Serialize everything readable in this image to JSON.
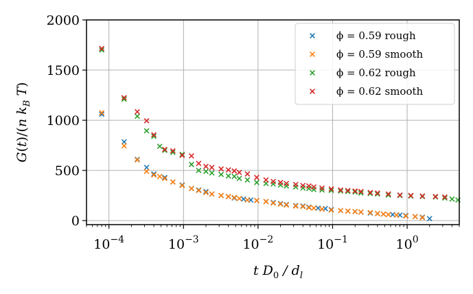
{
  "chart_data": {
    "type": "scatter",
    "marker": "x",
    "xscale": "log",
    "xlabel": "t D0 / dl",
    "ylabel": "G(t)/(n kB T)",
    "xlim": [
      5e-05,
      5
    ],
    "ylim": [
      -40,
      2000
    ],
    "grid": true,
    "legend_position": "top-right",
    "yticks": [
      0,
      500,
      1000,
      1500,
      2000
    ],
    "xticks": [
      {
        "value": 0.0001,
        "base": "10",
        "exp": "−4"
      },
      {
        "value": 0.001,
        "base": "10",
        "exp": "−3"
      },
      {
        "value": 0.01,
        "base": "10",
        "exp": "−2"
      },
      {
        "value": 0.1,
        "base": "10",
        "exp": "−1"
      },
      {
        "value": 1,
        "base": "10",
        "exp": "0"
      }
    ],
    "series": [
      {
        "name": "ϕ = 0.59 rough",
        "color": "#1f77b4",
        "x": [
          8e-05,
          0.00016,
          0.00024,
          0.00032,
          0.0004,
          0.00056,
          0.00072,
          0.00096,
          0.00128,
          0.0016,
          0.002,
          0.0024,
          0.0032,
          0.004,
          0.0048,
          0.0064,
          0.008,
          0.0096,
          0.0128,
          0.016,
          0.02,
          0.024,
          0.032,
          0.04,
          0.048,
          0.064,
          0.08,
          0.096,
          0.128,
          0.16,
          0.2,
          0.24,
          0.32,
          0.4,
          0.48,
          0.64,
          0.8,
          0.96,
          1.28,
          1.6,
          2.0
        ],
        "y": [
          1060,
          785,
          610,
          530,
          465,
          430,
          385,
          355,
          320,
          305,
          290,
          265,
          250,
          240,
          225,
          215,
          205,
          200,
          190,
          180,
          170,
          160,
          150,
          145,
          135,
          125,
          120,
          110,
          100,
          95,
          90,
          85,
          75,
          70,
          65,
          60,
          55,
          50,
          40,
          35,
          20
        ]
      },
      {
        "name": "ϕ = 0.59 smooth",
        "color": "#ff7f0e",
        "x": [
          8e-05,
          0.00016,
          0.00024,
          0.00032,
          0.0004,
          0.00048,
          0.00056,
          0.00072,
          0.00096,
          0.00128,
          0.0016,
          0.002,
          0.0024,
          0.0032,
          0.004,
          0.0048,
          0.0056,
          0.0072,
          0.0096,
          0.0128,
          0.016,
          0.02,
          0.024,
          0.032,
          0.04,
          0.048,
          0.056,
          0.072,
          0.096,
          0.128,
          0.16,
          0.2,
          0.24,
          0.32,
          0.4,
          0.48,
          0.56,
          0.72,
          0.96,
          1.28,
          1.6
        ],
        "y": [
          1075,
          745,
          605,
          490,
          455,
          440,
          420,
          385,
          350,
          320,
          300,
          280,
          265,
          250,
          240,
          230,
          220,
          205,
          200,
          190,
          175,
          165,
          155,
          145,
          140,
          130,
          125,
          115,
          105,
          100,
          95,
          90,
          85,
          80,
          70,
          65,
          60,
          55,
          45,
          40,
          30
        ]
      },
      {
        "name": "ϕ = 0.62 rough",
        "color": "#2ca02c",
        "x": [
          8e-05,
          0.00016,
          0.00024,
          0.00032,
          0.0004,
          0.00048,
          0.00056,
          0.00072,
          0.00096,
          0.00128,
          0.0016,
          0.002,
          0.0024,
          0.0032,
          0.004,
          0.0048,
          0.0056,
          0.0072,
          0.0096,
          0.0128,
          0.016,
          0.02,
          0.024,
          0.032,
          0.04,
          0.048,
          0.056,
          0.072,
          0.096,
          0.128,
          0.16,
          0.2,
          0.24,
          0.32,
          0.4,
          0.56,
          0.8,
          1.12,
          1.6,
          2.4,
          3.2,
          4.0,
          4.8
        ],
        "y": [
          1700,
          1210,
          1040,
          895,
          840,
          740,
          700,
          680,
          660,
          560,
          500,
          490,
          475,
          460,
          445,
          440,
          420,
          405,
          380,
          370,
          365,
          355,
          345,
          335,
          325,
          320,
          310,
          305,
          300,
          295,
          290,
          285,
          275,
          270,
          265,
          255,
          250,
          245,
          240,
          235,
          225,
          215,
          205
        ]
      },
      {
        "name": "ϕ = 0.62 smooth",
        "color": "#d62728",
        "x": [
          8e-05,
          0.00016,
          0.00024,
          0.00032,
          0.0004,
          0.00056,
          0.00072,
          0.00096,
          0.00128,
          0.0016,
          0.002,
          0.0024,
          0.0032,
          0.004,
          0.0048,
          0.0056,
          0.0072,
          0.0096,
          0.0128,
          0.016,
          0.02,
          0.024,
          0.032,
          0.04,
          0.048,
          0.056,
          0.072,
          0.096,
          0.128,
          0.16,
          0.2,
          0.24,
          0.32,
          0.4,
          0.56,
          0.8,
          1.12,
          1.6,
          2.4,
          3.2
        ],
        "y": [
          1715,
          1225,
          1085,
          995,
          855,
          710,
          695,
          650,
          645,
          570,
          540,
          530,
          515,
          505,
          495,
          480,
          465,
          430,
          405,
          390,
          380,
          370,
          360,
          350,
          345,
          335,
          325,
          315,
          305,
          300,
          295,
          290,
          280,
          275,
          265,
          255,
          250,
          245,
          240,
          235
        ]
      }
    ]
  }
}
